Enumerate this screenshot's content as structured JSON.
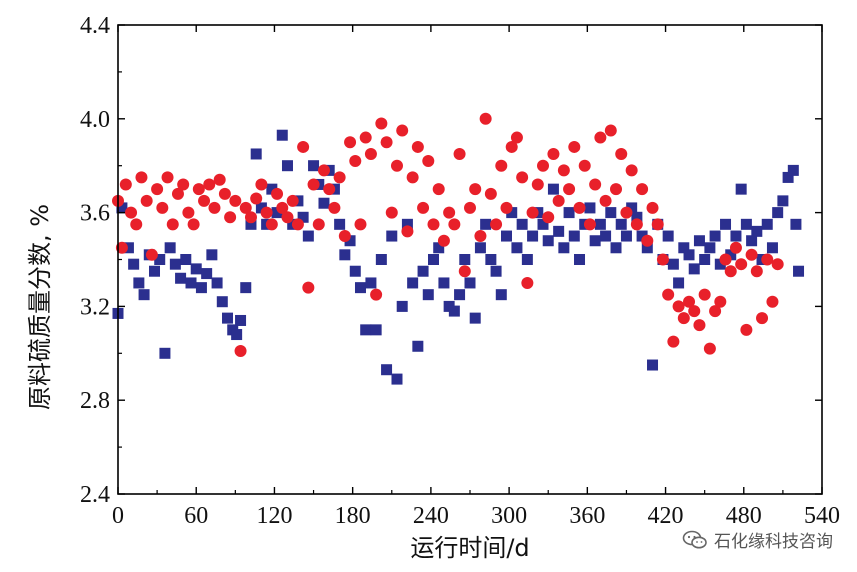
{
  "watermark": {
    "text": "石化缘科技咨询",
    "icon": "wechat-icon"
  },
  "chart_data": {
    "type": "scatter",
    "xlabel": "运行时间/d",
    "ylabel": "原料硫质量分数, %",
    "xlim": [
      0,
      540
    ],
    "ylim": [
      2.4,
      4.4
    ],
    "xticks": [
      "0",
      "60",
      "120",
      "180",
      "240",
      "300",
      "360",
      "420",
      "480",
      "540"
    ],
    "yticks": [
      "2.4",
      "2.8",
      "3.2",
      "3.6",
      "4.0",
      "4.4"
    ],
    "grid": false,
    "series": [
      {
        "marker": "square",
        "color": "#2b2f8f",
        "points": [
          [
            0,
            3.17
          ],
          [
            3,
            3.62
          ],
          [
            8,
            3.45
          ],
          [
            12,
            3.38
          ],
          [
            16,
            3.3
          ],
          [
            20,
            3.25
          ],
          [
            24,
            3.42
          ],
          [
            28,
            3.35
          ],
          [
            32,
            3.4
          ],
          [
            36,
            3.0
          ],
          [
            40,
            3.45
          ],
          [
            44,
            3.38
          ],
          [
            48,
            3.32
          ],
          [
            52,
            3.4
          ],
          [
            56,
            3.3
          ],
          [
            60,
            3.36
          ],
          [
            64,
            3.28
          ],
          [
            68,
            3.34
          ],
          [
            72,
            3.42
          ],
          [
            76,
            3.3
          ],
          [
            80,
            3.22
          ],
          [
            84,
            3.15
          ],
          [
            88,
            3.1
          ],
          [
            91,
            3.08
          ],
          [
            94,
            3.14
          ],
          [
            98,
            3.28
          ],
          [
            102,
            3.55
          ],
          [
            106,
            3.85
          ],
          [
            110,
            3.62
          ],
          [
            114,
            3.55
          ],
          [
            118,
            3.7
          ],
          [
            122,
            3.6
          ],
          [
            126,
            3.93
          ],
          [
            130,
            3.8
          ],
          [
            134,
            3.55
          ],
          [
            138,
            3.65
          ],
          [
            142,
            3.58
          ],
          [
            146,
            3.5
          ],
          [
            150,
            3.8
          ],
          [
            154,
            3.72
          ],
          [
            158,
            3.64
          ],
          [
            162,
            3.78
          ],
          [
            166,
            3.7
          ],
          [
            170,
            3.55
          ],
          [
            174,
            3.42
          ],
          [
            178,
            3.48
          ],
          [
            182,
            3.35
          ],
          [
            186,
            3.28
          ],
          [
            190,
            3.1
          ],
          [
            194,
            3.3
          ],
          [
            198,
            3.1
          ],
          [
            202,
            3.4
          ],
          [
            206,
            2.93
          ],
          [
            210,
            3.5
          ],
          [
            214,
            2.89
          ],
          [
            218,
            3.2
          ],
          [
            222,
            3.55
          ],
          [
            226,
            3.3
          ],
          [
            230,
            3.03
          ],
          [
            234,
            3.35
          ],
          [
            238,
            3.25
          ],
          [
            242,
            3.4
          ],
          [
            246,
            3.45
          ],
          [
            250,
            3.3
          ],
          [
            254,
            3.2
          ],
          [
            258,
            3.18
          ],
          [
            262,
            3.25
          ],
          [
            266,
            3.4
          ],
          [
            270,
            3.3
          ],
          [
            274,
            3.15
          ],
          [
            278,
            3.45
          ],
          [
            282,
            3.55
          ],
          [
            286,
            3.4
          ],
          [
            290,
            3.35
          ],
          [
            294,
            3.25
          ],
          [
            298,
            3.5
          ],
          [
            302,
            3.6
          ],
          [
            306,
            3.45
          ],
          [
            310,
            3.55
          ],
          [
            314,
            3.4
          ],
          [
            318,
            3.5
          ],
          [
            322,
            3.6
          ],
          [
            326,
            3.55
          ],
          [
            330,
            3.48
          ],
          [
            334,
            3.7
          ],
          [
            338,
            3.52
          ],
          [
            342,
            3.45
          ],
          [
            346,
            3.6
          ],
          [
            350,
            3.5
          ],
          [
            354,
            3.4
          ],
          [
            358,
            3.55
          ],
          [
            362,
            3.62
          ],
          [
            366,
            3.48
          ],
          [
            370,
            3.55
          ],
          [
            374,
            3.5
          ],
          [
            378,
            3.6
          ],
          [
            382,
            3.45
          ],
          [
            386,
            3.55
          ],
          [
            390,
            3.5
          ],
          [
            394,
            3.62
          ],
          [
            398,
            3.58
          ],
          [
            402,
            3.5
          ],
          [
            406,
            3.45
          ],
          [
            410,
            2.95
          ],
          [
            414,
            3.55
          ],
          [
            418,
            3.4
          ],
          [
            422,
            3.5
          ],
          [
            426,
            3.38
          ],
          [
            430,
            3.3
          ],
          [
            434,
            3.45
          ],
          [
            438,
            3.42
          ],
          [
            442,
            3.36
          ],
          [
            446,
            3.48
          ],
          [
            450,
            3.4
          ],
          [
            454,
            3.45
          ],
          [
            458,
            3.5
          ],
          [
            462,
            3.38
          ],
          [
            466,
            3.55
          ],
          [
            470,
            3.42
          ],
          [
            474,
            3.5
          ],
          [
            478,
            3.7
          ],
          [
            482,
            3.55
          ],
          [
            486,
            3.48
          ],
          [
            490,
            3.52
          ],
          [
            494,
            3.4
          ],
          [
            498,
            3.55
          ],
          [
            502,
            3.45
          ],
          [
            506,
            3.6
          ],
          [
            510,
            3.65
          ],
          [
            514,
            3.75
          ],
          [
            518,
            3.78
          ],
          [
            520,
            3.55
          ],
          [
            522,
            3.35
          ]
        ]
      },
      {
        "marker": "circle",
        "color": "#e8202a",
        "points": [
          [
            0,
            3.65
          ],
          [
            3,
            3.45
          ],
          [
            6,
            3.72
          ],
          [
            10,
            3.6
          ],
          [
            14,
            3.55
          ],
          [
            18,
            3.75
          ],
          [
            22,
            3.65
          ],
          [
            26,
            3.42
          ],
          [
            30,
            3.7
          ],
          [
            34,
            3.62
          ],
          [
            38,
            3.75
          ],
          [
            42,
            3.55
          ],
          [
            46,
            3.68
          ],
          [
            50,
            3.72
          ],
          [
            54,
            3.6
          ],
          [
            58,
            3.55
          ],
          [
            62,
            3.7
          ],
          [
            66,
            3.65
          ],
          [
            70,
            3.72
          ],
          [
            74,
            3.62
          ],
          [
            78,
            3.74
          ],
          [
            82,
            3.68
          ],
          [
            86,
            3.58
          ],
          [
            90,
            3.65
          ],
          [
            94,
            3.01
          ],
          [
            98,
            3.62
          ],
          [
            102,
            3.58
          ],
          [
            106,
            3.66
          ],
          [
            110,
            3.72
          ],
          [
            114,
            3.6
          ],
          [
            118,
            3.55
          ],
          [
            122,
            3.68
          ],
          [
            126,
            3.62
          ],
          [
            130,
            3.58
          ],
          [
            134,
            3.65
          ],
          [
            138,
            3.55
          ],
          [
            142,
            3.88
          ],
          [
            146,
            3.28
          ],
          [
            150,
            3.72
          ],
          [
            154,
            3.55
          ],
          [
            158,
            3.78
          ],
          [
            162,
            3.7
          ],
          [
            166,
            3.62
          ],
          [
            170,
            3.75
          ],
          [
            174,
            3.5
          ],
          [
            178,
            3.9
          ],
          [
            182,
            3.82
          ],
          [
            186,
            3.55
          ],
          [
            190,
            3.92
          ],
          [
            194,
            3.85
          ],
          [
            198,
            3.25
          ],
          [
            202,
            3.98
          ],
          [
            206,
            3.9
          ],
          [
            210,
            3.6
          ],
          [
            214,
            3.8
          ],
          [
            218,
            3.95
          ],
          [
            222,
            3.52
          ],
          [
            226,
            3.75
          ],
          [
            230,
            3.88
          ],
          [
            234,
            3.62
          ],
          [
            238,
            3.82
          ],
          [
            242,
            3.55
          ],
          [
            246,
            3.7
          ],
          [
            250,
            3.48
          ],
          [
            254,
            3.6
          ],
          [
            258,
            3.55
          ],
          [
            262,
            3.85
          ],
          [
            266,
            3.35
          ],
          [
            270,
            3.62
          ],
          [
            274,
            3.7
          ],
          [
            278,
            3.5
          ],
          [
            282,
            4.0
          ],
          [
            286,
            3.68
          ],
          [
            290,
            3.55
          ],
          [
            294,
            3.8
          ],
          [
            298,
            3.62
          ],
          [
            302,
            3.88
          ],
          [
            306,
            3.92
          ],
          [
            310,
            3.75
          ],
          [
            314,
            3.3
          ],
          [
            318,
            3.6
          ],
          [
            322,
            3.72
          ],
          [
            326,
            3.8
          ],
          [
            330,
            3.58
          ],
          [
            334,
            3.85
          ],
          [
            338,
            3.65
          ],
          [
            342,
            3.78
          ],
          [
            346,
            3.7
          ],
          [
            350,
            3.88
          ],
          [
            354,
            3.62
          ],
          [
            358,
            3.8
          ],
          [
            362,
            3.55
          ],
          [
            366,
            3.72
          ],
          [
            370,
            3.92
          ],
          [
            374,
            3.65
          ],
          [
            378,
            3.95
          ],
          [
            382,
            3.7
          ],
          [
            386,
            3.85
          ],
          [
            390,
            3.6
          ],
          [
            394,
            3.78
          ],
          [
            398,
            3.55
          ],
          [
            402,
            3.7
          ],
          [
            406,
            3.48
          ],
          [
            410,
            3.62
          ],
          [
            414,
            3.55
          ],
          [
            418,
            3.4
          ],
          [
            422,
            3.25
          ],
          [
            426,
            3.05
          ],
          [
            430,
            3.2
          ],
          [
            434,
            3.15
          ],
          [
            438,
            3.22
          ],
          [
            442,
            3.18
          ],
          [
            446,
            3.12
          ],
          [
            450,
            3.25
          ],
          [
            454,
            3.02
          ],
          [
            458,
            3.18
          ],
          [
            462,
            3.22
          ],
          [
            466,
            3.4
          ],
          [
            470,
            3.35
          ],
          [
            474,
            3.45
          ],
          [
            478,
            3.38
          ],
          [
            482,
            3.1
          ],
          [
            486,
            3.42
          ],
          [
            490,
            3.35
          ],
          [
            494,
            3.15
          ],
          [
            498,
            3.4
          ],
          [
            502,
            3.22
          ],
          [
            506,
            3.38
          ]
        ]
      }
    ]
  }
}
